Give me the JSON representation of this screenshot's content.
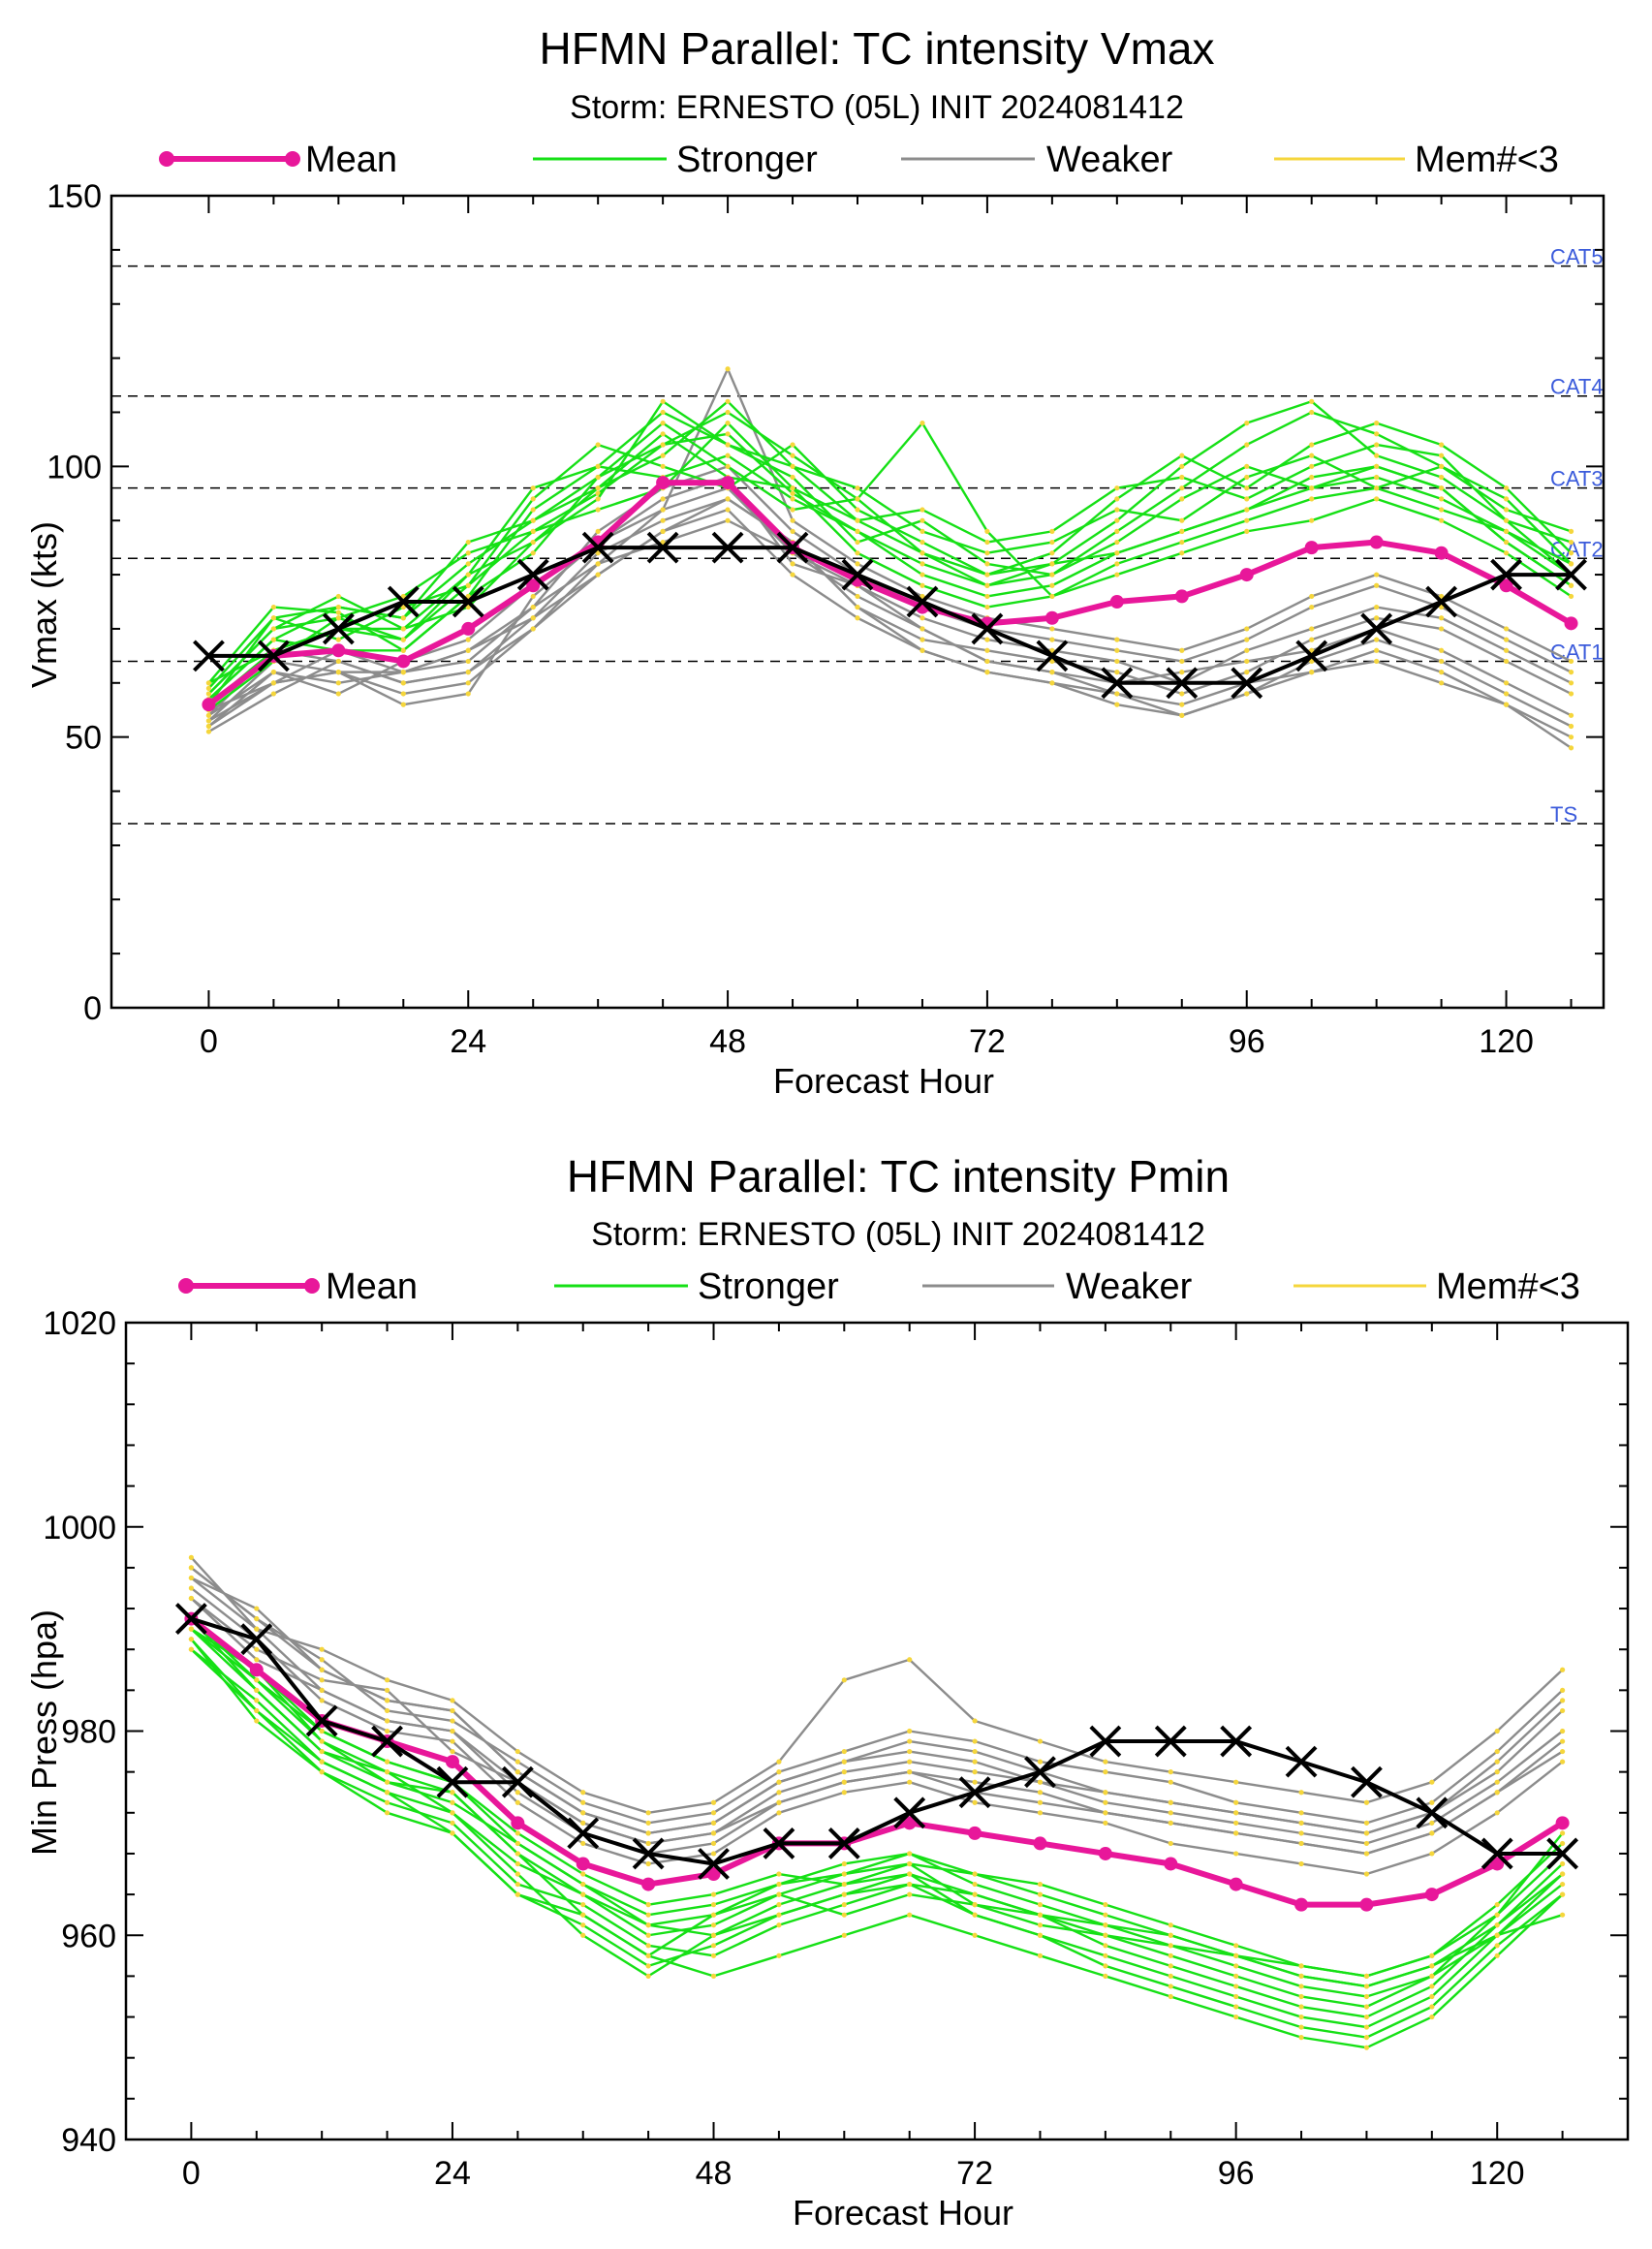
{
  "colors": {
    "mean": "#e8179a",
    "stronger": "#16e016",
    "weaker": "#8c8c8c",
    "mem_lt_3": "#f5d63c",
    "observed": "#000000",
    "category_text": "#3b5bdb"
  },
  "chart_data": [
    {
      "type": "line",
      "title": "HFMN Parallel: TC intensity Vmax",
      "subtitle": "Storm: ERNESTO (05L) INIT 2024081412",
      "xlabel": "Forecast Hour",
      "ylabel": "Vmax (kts)",
      "legend": [
        "Mean",
        "Stronger",
        "Weaker",
        "Mem#<3"
      ],
      "legend_placement": "top",
      "xlim": [
        -9,
        129
      ],
      "ylim": [
        0,
        150
      ],
      "xticks": [
        0,
        24,
        48,
        72,
        96,
        120
      ],
      "yticks": [
        0,
        50,
        100,
        150
      ],
      "grid": false,
      "x": [
        0,
        6,
        12,
        18,
        24,
        30,
        36,
        42,
        48,
        54,
        60,
        66,
        72,
        78,
        84,
        90,
        96,
        102,
        108,
        114,
        120,
        126
      ],
      "reference_lines": [
        {
          "label": "TS",
          "value": 34
        },
        {
          "label": "CAT1",
          "value": 64
        },
        {
          "label": "CAT2",
          "value": 83
        },
        {
          "label": "CAT3",
          "value": 96
        },
        {
          "label": "CAT4",
          "value": 113
        },
        {
          "label": "CAT5",
          "value": 137
        }
      ],
      "series": [
        {
          "name": "Mean",
          "values": [
            56,
            65,
            66,
            64,
            70,
            78,
            86,
            97,
            97,
            85,
            79,
            74,
            71,
            72,
            75,
            76,
            80,
            85,
            86,
            84,
            78,
            71
          ]
        },
        {
          "values": [
            65,
            65,
            70,
            75,
            75,
            80,
            85,
            85,
            85,
            85,
            80,
            75,
            70,
            65,
            60,
            60,
            60,
            65,
            70,
            75,
            80,
            80
          ]
        }
      ],
      "ensemble_members": {
        "stronger": [
          [
            58,
            70,
            72,
            68,
            78,
            88,
            95,
            104,
            106,
            95,
            88,
            80,
            76,
            78,
            84,
            88,
            92,
            98,
            100,
            96,
            86,
            78
          ],
          [
            60,
            74,
            73,
            66,
            76,
            92,
            100,
            110,
            104,
            98,
            86,
            90,
            82,
            80,
            88,
            96,
            104,
            110,
            106,
            100,
            94,
            82
          ],
          [
            56,
            66,
            70,
            70,
            80,
            86,
            96,
            102,
            112,
            100,
            90,
            84,
            78,
            82,
            90,
            100,
            108,
            112,
            102,
            98,
            90,
            86
          ],
          [
            57,
            68,
            74,
            72,
            82,
            90,
            98,
            108,
            100,
            92,
            94,
            108,
            88,
            76,
            82,
            86,
            90,
            94,
            96,
            92,
            88,
            80
          ],
          [
            59,
            72,
            68,
            74,
            78,
            94,
            104,
            100,
            96,
            104,
            92,
            86,
            80,
            84,
            94,
            102,
            96,
            104,
            108,
            104,
            96,
            84
          ],
          [
            55,
            64,
            72,
            76,
            84,
            88,
            92,
            96,
            108,
            96,
            84,
            78,
            74,
            76,
            80,
            84,
            88,
            90,
            94,
            90,
            84,
            76
          ],
          [
            58,
            70,
            76,
            70,
            74,
            86,
            94,
            112,
            104,
            100,
            96,
            88,
            84,
            86,
            92,
            90,
            98,
            102,
            96,
            100,
            92,
            88
          ],
          [
            60,
            66,
            70,
            68,
            80,
            96,
            100,
            98,
            102,
            94,
            88,
            82,
            78,
            80,
            86,
            94,
            100,
            96,
            98,
            94,
            88,
            82
          ],
          [
            56,
            72,
            74,
            72,
            86,
            90,
            96,
            106,
            98,
            96,
            90,
            92,
            86,
            88,
            96,
            98,
            94,
            100,
            104,
            102,
            90,
            80
          ],
          [
            57,
            68,
            66,
            66,
            76,
            84,
            98,
            104,
            110,
            102,
            94,
            84,
            80,
            82,
            84,
            88,
            92,
            96,
            100,
            96,
            86,
            78
          ]
        ],
        "weaker": [
          [
            52,
            60,
            62,
            58,
            60,
            70,
            80,
            88,
            92,
            80,
            72,
            66,
            62,
            60,
            58,
            56,
            60,
            62,
            64,
            60,
            56,
            50
          ],
          [
            54,
            62,
            60,
            62,
            66,
            74,
            82,
            92,
            96,
            84,
            76,
            70,
            64,
            62,
            60,
            62,
            64,
            66,
            70,
            66,
            60,
            54
          ],
          [
            51,
            58,
            64,
            60,
            62,
            72,
            84,
            90,
            94,
            86,
            74,
            68,
            66,
            64,
            62,
            58,
            62,
            68,
            72,
            70,
            64,
            58
          ],
          [
            53,
            64,
            62,
            56,
            58,
            76,
            86,
            94,
            98,
            82,
            78,
            72,
            68,
            66,
            64,
            60,
            66,
            70,
            74,
            72,
            66,
            60
          ],
          [
            55,
            60,
            66,
            62,
            64,
            74,
            88,
            96,
            100,
            88,
            80,
            74,
            70,
            68,
            66,
            64,
            68,
            74,
            78,
            74,
            68,
            62
          ],
          [
            52,
            62,
            58,
            64,
            68,
            78,
            86,
            92,
            118,
            90,
            82,
            76,
            72,
            70,
            68,
            66,
            70,
            76,
            80,
            76,
            70,
            64
          ],
          [
            54,
            66,
            64,
            60,
            62,
            70,
            82,
            86,
            90,
            84,
            78,
            70,
            64,
            62,
            58,
            54,
            58,
            64,
            68,
            64,
            58,
            52
          ],
          [
            53,
            60,
            62,
            62,
            66,
            72,
            80,
            88,
            94,
            86,
            74,
            66,
            62,
            60,
            56,
            54,
            58,
            62,
            66,
            62,
            56,
            48
          ]
        ]
      }
    },
    {
      "type": "line",
      "title": "HFMN Parallel: TC intensity Pmin",
      "subtitle": "Storm: ERNESTO (05L) INIT 2024081412",
      "xlabel": "Forecast Hour",
      "ylabel": "Min Press (hpa)",
      "legend": [
        "Mean",
        "Stronger",
        "Weaker",
        "Mem#<3"
      ],
      "legend_placement": "top",
      "xlim": [
        -6,
        132
      ],
      "ylim": [
        940,
        1020
      ],
      "xticks": [
        0,
        24,
        48,
        72,
        96,
        120
      ],
      "yticks": [
        940,
        960,
        980,
        1000,
        1020
      ],
      "grid": false,
      "x": [
        0,
        6,
        12,
        18,
        24,
        30,
        36,
        42,
        48,
        54,
        60,
        66,
        72,
        78,
        84,
        90,
        96,
        102,
        108,
        114,
        120,
        126
      ],
      "series": [
        {
          "name": "Mean",
          "values": [
            991,
            986,
            981,
            979,
            977,
            971,
            967,
            965,
            966,
            969,
            969,
            971,
            970,
            969,
            968,
            967,
            965,
            963,
            963,
            964,
            967,
            971
          ]
        },
        {
          "values": [
            991,
            989,
            981,
            979,
            975,
            975,
            970,
            968,
            967,
            969,
            969,
            972,
            974,
            976,
            979,
            979,
            979,
            977,
            975,
            972,
            968,
            968
          ]
        }
      ],
      "ensemble_members": {
        "stronger": [
          [
            990,
            984,
            978,
            976,
            974,
            968,
            964,
            960,
            961,
            964,
            962,
            964,
            963,
            962,
            960,
            959,
            958,
            956,
            955,
            957,
            960,
            965
          ],
          [
            989,
            982,
            976,
            972,
            970,
            964,
            962,
            958,
            956,
            958,
            960,
            962,
            960,
            958,
            956,
            954,
            952,
            950,
            949,
            952,
            958,
            964
          ],
          [
            991,
            985,
            980,
            977,
            975,
            970,
            966,
            963,
            964,
            966,
            965,
            967,
            966,
            965,
            963,
            961,
            959,
            957,
            956,
            958,
            962,
            968
          ],
          [
            988,
            983,
            977,
            974,
            972,
            966,
            960,
            956,
            960,
            962,
            964,
            966,
            962,
            960,
            958,
            956,
            954,
            952,
            951,
            954,
            960,
            966
          ],
          [
            990,
            986,
            979,
            975,
            973,
            969,
            965,
            962,
            963,
            965,
            967,
            968,
            965,
            963,
            961,
            959,
            957,
            955,
            954,
            956,
            962,
            970
          ],
          [
            989,
            981,
            976,
            973,
            971,
            965,
            963,
            959,
            958,
            961,
            963,
            965,
            964,
            962,
            959,
            957,
            955,
            953,
            952,
            955,
            961,
            967
          ],
          [
            991,
            984,
            978,
            975,
            974,
            968,
            962,
            958,
            962,
            965,
            966,
            967,
            963,
            961,
            960,
            958,
            956,
            954,
            953,
            956,
            960,
            962
          ],
          [
            990,
            985,
            979,
            976,
            972,
            967,
            964,
            961,
            960,
            963,
            965,
            966,
            964,
            962,
            961,
            960,
            958,
            956,
            955,
            957,
            961,
            966
          ],
          [
            988,
            982,
            977,
            974,
            970,
            964,
            961,
            957,
            959,
            962,
            964,
            965,
            962,
            960,
            957,
            955,
            953,
            951,
            950,
            953,
            959,
            964
          ],
          [
            991,
            986,
            980,
            977,
            975,
            969,
            965,
            961,
            962,
            964,
            966,
            968,
            966,
            964,
            962,
            960,
            958,
            957,
            956,
            958,
            963,
            969
          ]
        ],
        "weaker": [
          [
            997,
            990,
            984,
            981,
            980,
            974,
            970,
            968,
            969,
            973,
            975,
            976,
            974,
            973,
            972,
            971,
            970,
            969,
            968,
            970,
            974,
            979
          ],
          [
            995,
            992,
            986,
            983,
            982,
            976,
            972,
            970,
            971,
            975,
            977,
            979,
            978,
            976,
            974,
            973,
            972,
            971,
            970,
            972,
            976,
            982
          ],
          [
            993,
            988,
            985,
            984,
            978,
            975,
            971,
            969,
            970,
            974,
            976,
            977,
            976,
            975,
            973,
            972,
            971,
            970,
            969,
            971,
            975,
            980
          ],
          [
            996,
            991,
            987,
            982,
            981,
            977,
            973,
            971,
            972,
            976,
            978,
            980,
            979,
            977,
            976,
            975,
            973,
            972,
            971,
            973,
            978,
            984
          ],
          [
            994,
            989,
            983,
            980,
            979,
            973,
            969,
            967,
            968,
            972,
            974,
            975,
            973,
            972,
            971,
            969,
            968,
            967,
            966,
            968,
            972,
            977
          ],
          [
            995,
            990,
            988,
            985,
            983,
            978,
            974,
            972,
            973,
            977,
            985,
            987,
            981,
            979,
            977,
            976,
            975,
            974,
            973,
            975,
            980,
            986
          ],
          [
            993,
            987,
            984,
            981,
            980,
            975,
            971,
            969,
            970,
            973,
            975,
            976,
            975,
            974,
            972,
            971,
            970,
            969,
            968,
            970,
            974,
            978
          ],
          [
            996,
            991,
            986,
            983,
            982,
            976,
            972,
            970,
            971,
            975,
            977,
            978,
            977,
            975,
            974,
            973,
            972,
            971,
            970,
            972,
            977,
            983
          ]
        ]
      }
    }
  ]
}
